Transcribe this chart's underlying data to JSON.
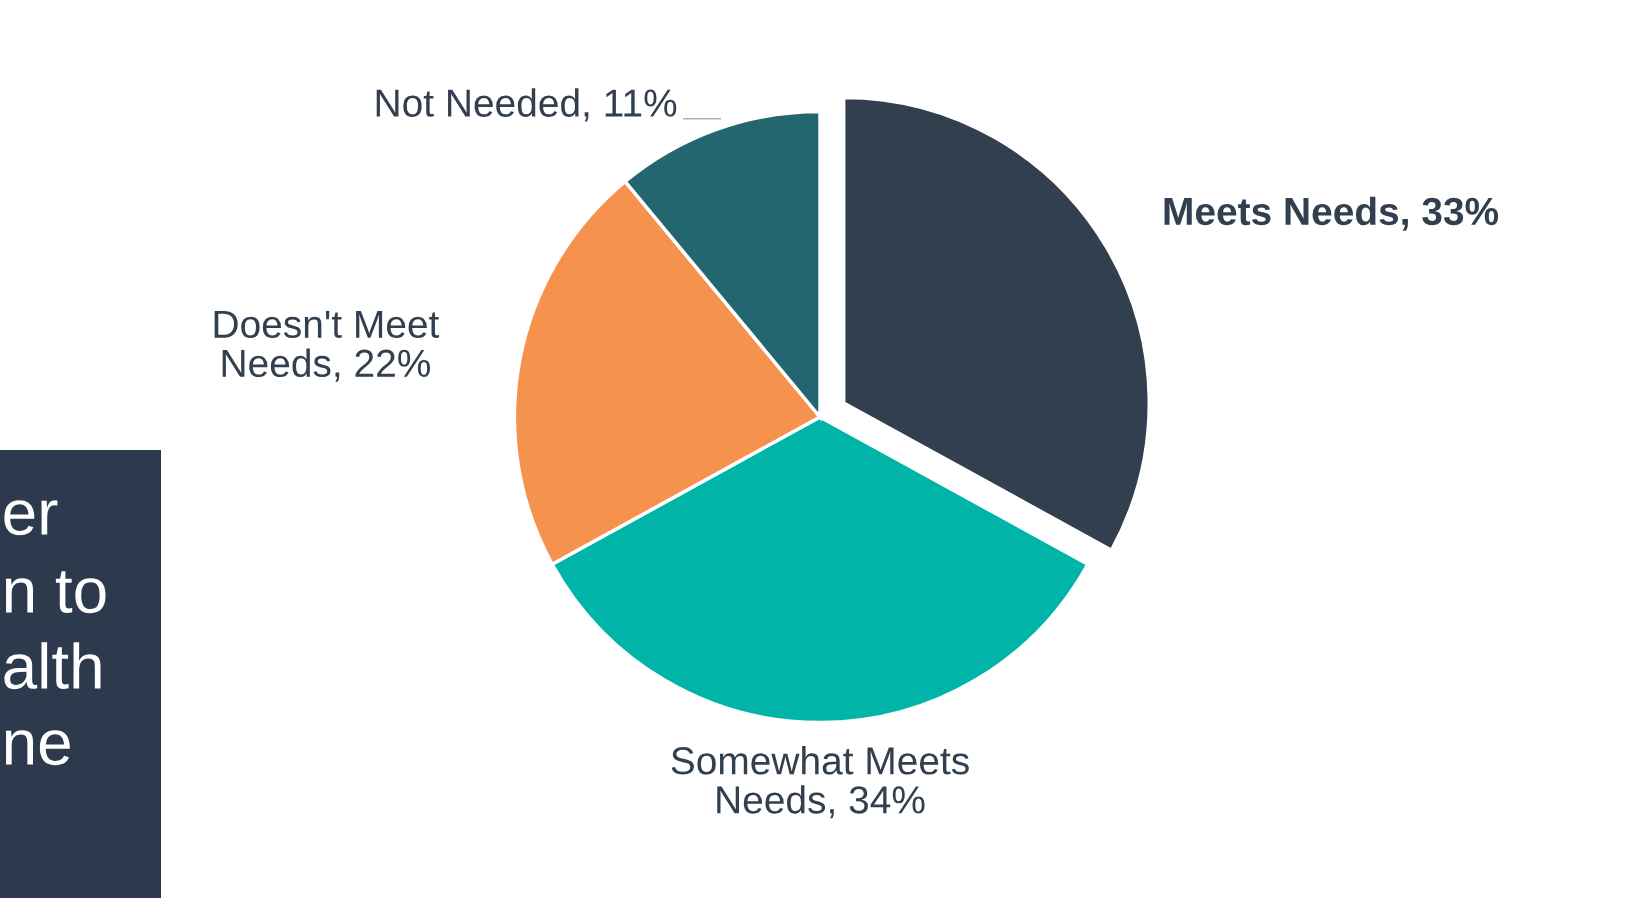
{
  "chart_data": {
    "type": "pie",
    "categories": [
      "Meets Needs",
      "Somewhat Meets Needs",
      "Doesn't Meet Needs",
      "Not Needed"
    ],
    "values": [
      33,
      34,
      22,
      11
    ],
    "value_labels": [
      "33%",
      "34%",
      "22%",
      "11%"
    ],
    "colors": [
      "#323f4f",
      "#00b5a8",
      "#f5924e",
      "#236670"
    ],
    "legend": false,
    "annotations": [
      "er",
      "n to",
      "alth",
      "ne"
    ]
  }
}
